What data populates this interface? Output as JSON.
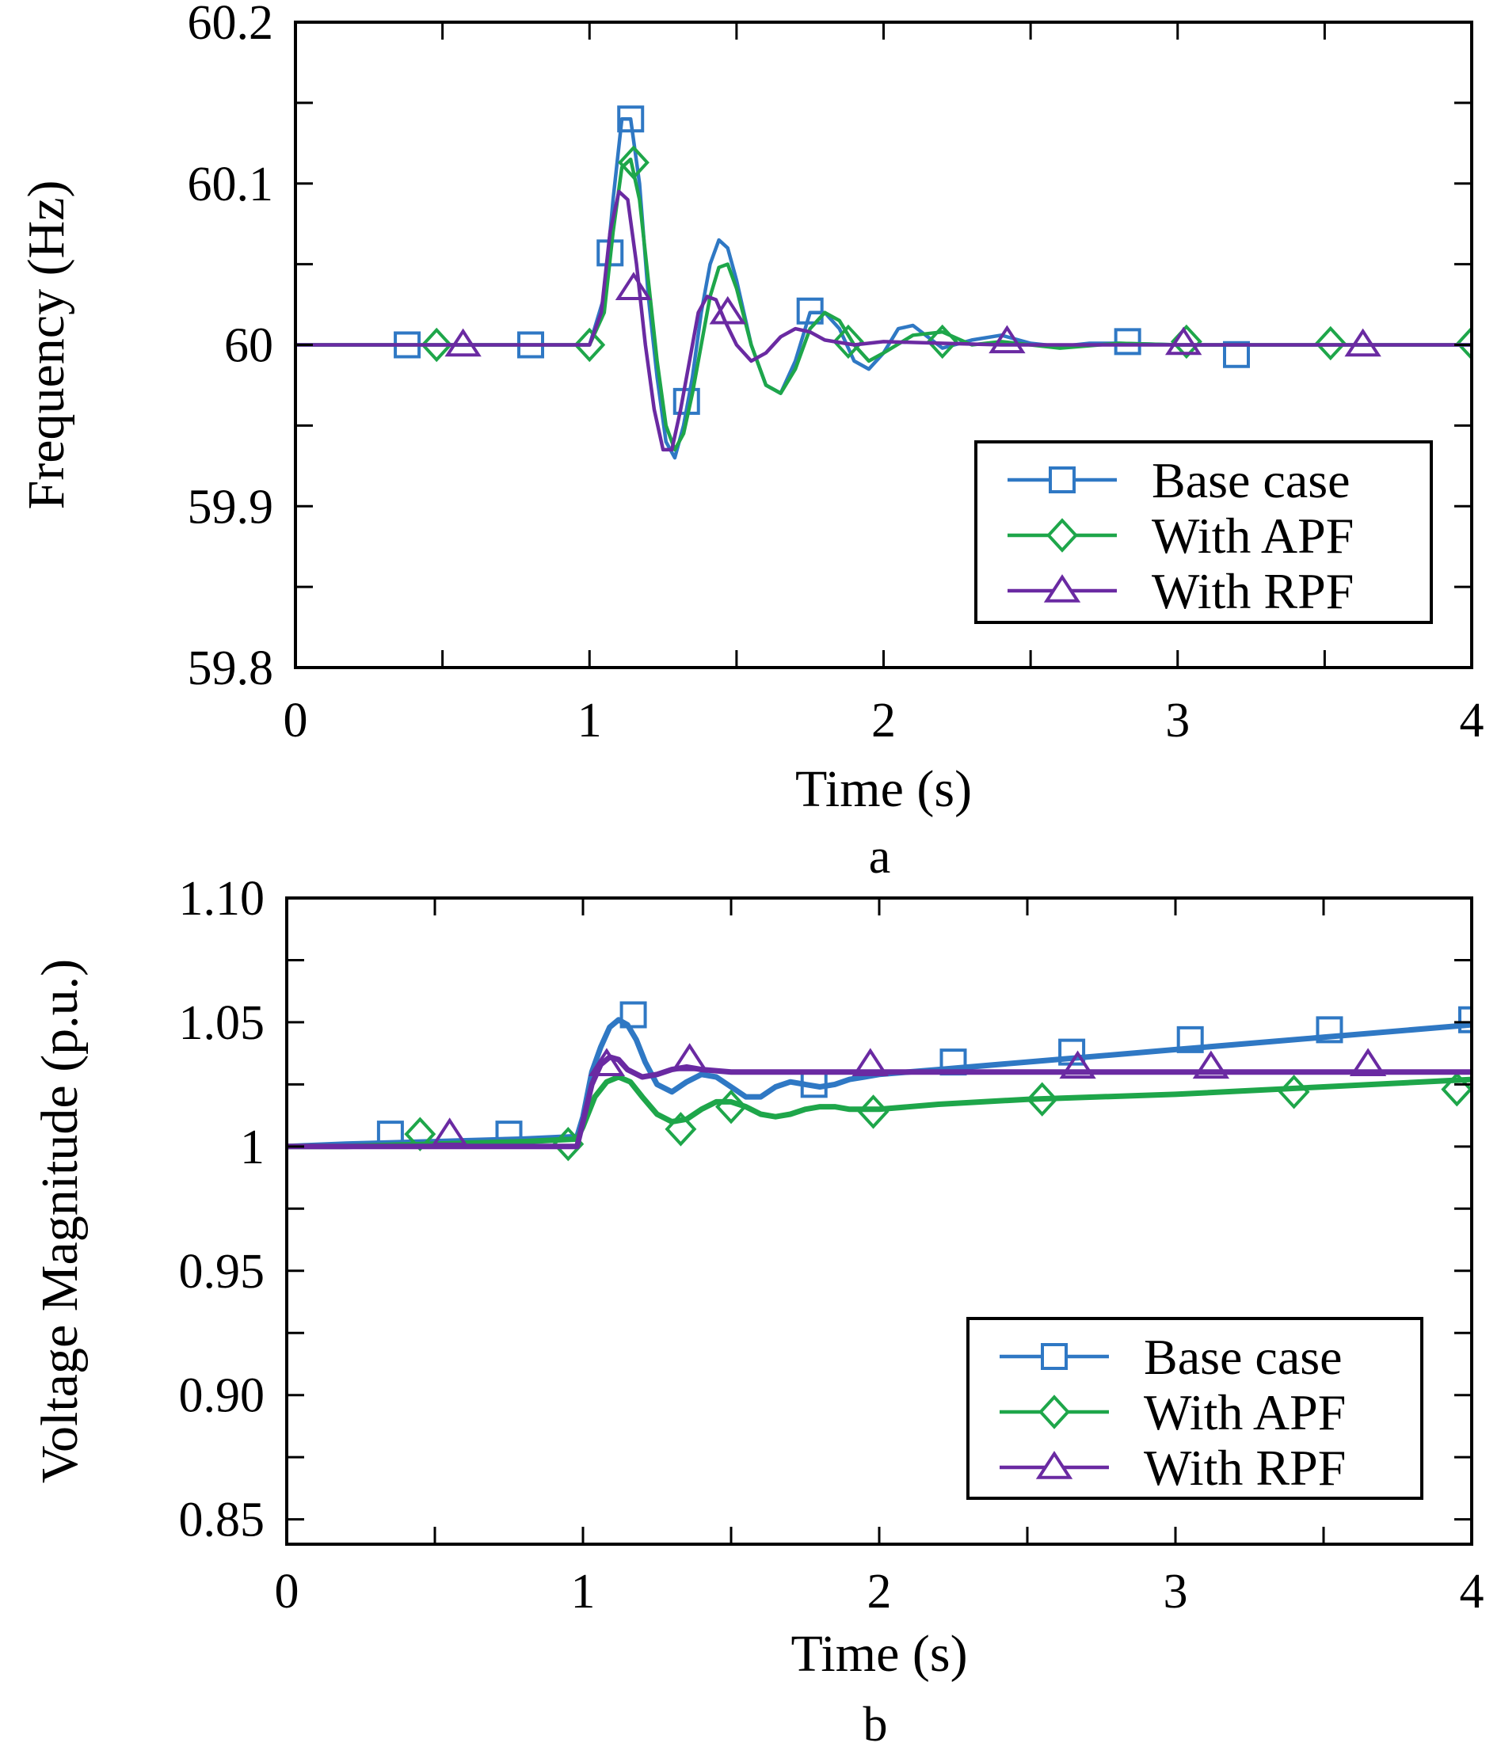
{
  "colors": {
    "base": "#2f78c4",
    "apf": "#1ea64a",
    "rpf": "#6a2aa2",
    "axis": "#000000"
  },
  "chart_data": [
    {
      "type": "line",
      "panel_label": "a",
      "xlabel": "Time (s)",
      "ylabel": "Frequency (Hz)",
      "xlim": [
        0,
        4
      ],
      "ylim": [
        59.8,
        60.2
      ],
      "xticks": [
        0,
        1,
        2,
        3,
        4
      ],
      "xtick_labels": [
        "0",
        "1",
        "2",
        "3",
        "4"
      ],
      "yticks": [
        59.8,
        59.9,
        60,
        60.1,
        60.2
      ],
      "ytick_labels": [
        "59.8",
        "59.9",
        "60",
        "60.1",
        "60.2"
      ],
      "grid": false,
      "legend_position": "bottom-right",
      "series": [
        {
          "name": "Base case",
          "color_key": "base",
          "marker": "square",
          "x": [
            0,
            0.5,
            1.0,
            1.05,
            1.08,
            1.11,
            1.14,
            1.17,
            1.2,
            1.23,
            1.26,
            1.29,
            1.32,
            1.35,
            1.38,
            1.41,
            1.44,
            1.47,
            1.5,
            1.55,
            1.6,
            1.65,
            1.7,
            1.75,
            1.8,
            1.85,
            1.9,
            1.95,
            2.0,
            2.05,
            2.1,
            2.15,
            2.2,
            2.3,
            2.4,
            2.5,
            2.6,
            2.7,
            2.8,
            3.0,
            3.2,
            3.5,
            4.0
          ],
          "y": [
            60.0,
            60.0,
            60.0,
            60.03,
            60.09,
            60.14,
            60.14,
            60.1,
            60.03,
            59.98,
            59.94,
            59.93,
            59.95,
            59.98,
            60.02,
            60.05,
            60.065,
            60.06,
            60.04,
            60.0,
            59.975,
            59.97,
            59.99,
            60.02,
            60.02,
            60.01,
            59.99,
            59.985,
            59.995,
            60.01,
            60.012,
            60.005,
            59.998,
            60.003,
            60.006,
            60.001,
            59.999,
            60.001,
            60.001,
            60.0,
            60.0,
            60.0,
            60.0
          ],
          "markers_x": [
            0.38,
            0.8,
            1.07,
            1.14,
            1.33,
            1.75,
            2.83,
            3.2
          ],
          "markers_y": [
            60.0,
            60.0,
            60.057,
            60.14,
            59.965,
            60.021,
            60.002,
            59.994
          ]
        },
        {
          "name": "With APF",
          "color_key": "apf",
          "marker": "diamond",
          "x": [
            0,
            0.5,
            1.0,
            1.05,
            1.08,
            1.11,
            1.14,
            1.17,
            1.2,
            1.23,
            1.26,
            1.29,
            1.32,
            1.35,
            1.38,
            1.41,
            1.44,
            1.47,
            1.5,
            1.55,
            1.6,
            1.65,
            1.7,
            1.75,
            1.8,
            1.85,
            1.9,
            1.95,
            2.0,
            2.1,
            2.2,
            2.3,
            2.4,
            2.6,
            2.8,
            3.0,
            3.5,
            4.0
          ],
          "y": [
            60.0,
            60.0,
            60.0,
            60.02,
            60.07,
            60.11,
            60.115,
            60.09,
            60.04,
            59.99,
            59.95,
            59.935,
            59.945,
            59.97,
            60.0,
            60.03,
            60.048,
            60.05,
            60.035,
            60.0,
            59.975,
            59.97,
            59.985,
            60.01,
            60.02,
            60.015,
            60.0,
            59.99,
            59.995,
            60.006,
            60.008,
            60.0,
            60.002,
            59.998,
            60.001,
            60.0,
            60.0,
            60.0
          ],
          "markers_x": [
            0.48,
            1.0,
            1.15,
            1.88,
            2.2,
            3.03,
            3.52,
            4.0
          ],
          "markers_y": [
            60.0,
            60.0,
            60.113,
            60.002,
            60.002,
            60.002,
            60.001,
            60.001
          ]
        },
        {
          "name": "With RPF",
          "color_key": "rpf",
          "marker": "triangle",
          "x": [
            0,
            0.5,
            1.0,
            1.04,
            1.07,
            1.1,
            1.13,
            1.16,
            1.19,
            1.22,
            1.25,
            1.28,
            1.31,
            1.34,
            1.37,
            1.4,
            1.43,
            1.46,
            1.5,
            1.55,
            1.6,
            1.65,
            1.7,
            1.75,
            1.8,
            1.9,
            2.0,
            2.2,
            2.4,
            2.6,
            2.8,
            3.0,
            3.5,
            4.0
          ],
          "y": [
            60.0,
            60.0,
            60.0,
            60.02,
            60.07,
            60.095,
            60.09,
            60.05,
            60.0,
            59.96,
            59.935,
            59.935,
            59.96,
            59.99,
            60.02,
            60.03,
            60.028,
            60.015,
            60.0,
            59.99,
            59.995,
            60.005,
            60.01,
            60.008,
            60.003,
            60.0,
            60.002,
            60.001,
            60.0,
            60.0,
            60.0,
            60.0,
            60.0,
            60.0
          ],
          "markers_x": [
            0.57,
            1.15,
            1.47,
            2.42,
            3.02,
            3.63
          ],
          "markers_y": [
            60.0,
            60.035,
            60.02,
            60.002,
            60.001,
            60.0
          ]
        }
      ]
    },
    {
      "type": "line",
      "panel_label": "b",
      "xlabel": "Time (s)",
      "ylabel": "Voltage Magnitude (p.u.)",
      "xlim": [
        0,
        4
      ],
      "ylim": [
        0.84,
        1.1
      ],
      "xticks": [
        0,
        1,
        2,
        3,
        4
      ],
      "xtick_labels": [
        "0",
        "1",
        "2",
        "3",
        "4"
      ],
      "yticks": [
        0.85,
        0.9,
        0.95,
        1.0,
        1.05,
        1.1
      ],
      "ytick_labels": [
        "0.85",
        "0.90",
        "0.95",
        "1",
        "1.05",
        "1.10"
      ],
      "grid": false,
      "legend_position": "bottom-right",
      "series": [
        {
          "name": "Base case",
          "color_key": "base",
          "marker": "square",
          "x": [
            0,
            0.2,
            0.5,
            0.8,
            0.98,
            1.0,
            1.03,
            1.06,
            1.09,
            1.12,
            1.15,
            1.18,
            1.21,
            1.25,
            1.3,
            1.35,
            1.4,
            1.45,
            1.5,
            1.55,
            1.6,
            1.65,
            1.7,
            1.75,
            1.8,
            1.85,
            1.9,
            1.95,
            2.0,
            2.2,
            2.5,
            3.0,
            3.5,
            4.0
          ],
          "y": [
            1.0,
            1.001,
            1.002,
            1.003,
            1.004,
            1.012,
            1.03,
            1.04,
            1.048,
            1.051,
            1.049,
            1.043,
            1.034,
            1.025,
            1.022,
            1.026,
            1.029,
            1.028,
            1.024,
            1.02,
            1.02,
            1.024,
            1.026,
            1.025,
            1.024,
            1.025,
            1.027,
            1.028,
            1.029,
            1.031,
            1.034,
            1.039,
            1.044,
            1.049
          ],
          "markers_x": [
            0.35,
            0.75,
            1.17,
            1.78,
            2.25,
            2.65,
            3.05,
            3.52,
            4.0
          ],
          "markers_y": [
            1.005,
            1.005,
            1.053,
            1.025,
            1.034,
            1.038,
            1.043,
            1.047,
            1.051
          ]
        },
        {
          "name": "With APF",
          "color_key": "apf",
          "marker": "diamond",
          "x": [
            0,
            0.2,
            0.5,
            0.8,
            0.98,
            1.0,
            1.04,
            1.08,
            1.12,
            1.16,
            1.2,
            1.25,
            1.3,
            1.35,
            1.4,
            1.45,
            1.5,
            1.55,
            1.6,
            1.65,
            1.7,
            1.75,
            1.8,
            1.85,
            1.9,
            2.0,
            2.2,
            2.5,
            3.0,
            3.5,
            4.0
          ],
          "y": [
            1.0,
            1.0,
            1.001,
            1.002,
            1.003,
            1.008,
            1.02,
            1.026,
            1.028,
            1.026,
            1.02,
            1.013,
            1.01,
            1.011,
            1.015,
            1.018,
            1.018,
            1.016,
            1.013,
            1.012,
            1.013,
            1.015,
            1.016,
            1.016,
            1.015,
            1.015,
            1.017,
            1.019,
            1.021,
            1.024,
            1.027
          ],
          "markers_x": [
            0.45,
            0.95,
            1.33,
            1.5,
            1.98,
            2.55,
            3.4,
            3.95
          ],
          "markers_y": [
            1.005,
            1.001,
            1.007,
            1.016,
            1.014,
            1.019,
            1.022,
            1.023
          ]
        },
        {
          "name": "With RPF",
          "color_key": "rpf",
          "marker": "triangle",
          "x": [
            0,
            0.2,
            0.5,
            0.8,
            0.98,
            1.0,
            1.03,
            1.06,
            1.09,
            1.12,
            1.15,
            1.2,
            1.25,
            1.3,
            1.35,
            1.4,
            1.5,
            1.6,
            1.8,
            2.0,
            2.5,
            3.0,
            3.5,
            4.0
          ],
          "y": [
            1.0,
            1.0,
            1.0,
            1.0,
            1.0,
            1.01,
            1.025,
            1.033,
            1.036,
            1.035,
            1.031,
            1.028,
            1.029,
            1.031,
            1.032,
            1.031,
            1.03,
            1.03,
            1.03,
            1.03,
            1.03,
            1.03,
            1.03,
            1.03
          ],
          "markers_x": [
            0.55,
            1.08,
            1.36,
            1.97,
            2.67,
            3.12,
            3.65
          ],
          "markers_y": [
            1.005,
            1.033,
            1.035,
            1.033,
            1.032,
            1.032,
            1.033
          ]
        }
      ]
    }
  ]
}
